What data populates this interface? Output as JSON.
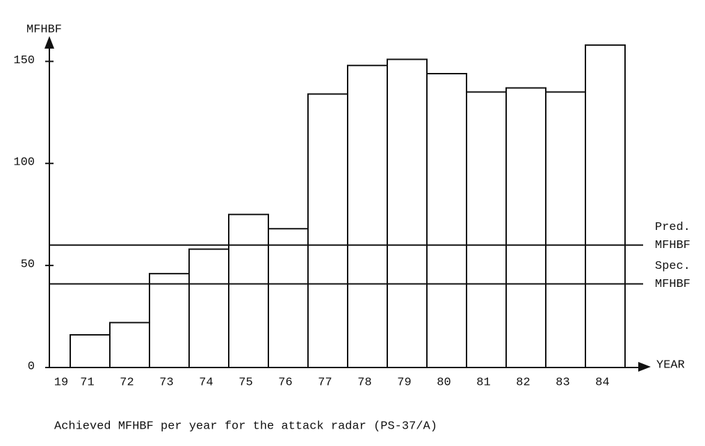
{
  "chart_data": {
    "type": "bar",
    "y_axis_label": "MFHBF",
    "x_axis_label": "YEAR",
    "x_origin_label": "19",
    "caption": "Achieved MFHBF per year for the attack radar (PS-37/A)",
    "categories": [
      "71",
      "72",
      "73",
      "74",
      "75",
      "76",
      "77",
      "78",
      "79",
      "80",
      "81",
      "82",
      "83",
      "84"
    ],
    "values": [
      16,
      22,
      46,
      58,
      75,
      68,
      134,
      148,
      151,
      144,
      135,
      137,
      135,
      158
    ],
    "color": "#ffffff",
    "ylim": [
      0,
      160
    ],
    "yticks": [
      0,
      50,
      100,
      150
    ],
    "reference_lines": [
      {
        "value": 60,
        "label": [
          "Pred.",
          "MFHBF"
        ]
      },
      {
        "value": 41,
        "label": [
          "Spec.",
          "MFHBF"
        ]
      }
    ]
  }
}
